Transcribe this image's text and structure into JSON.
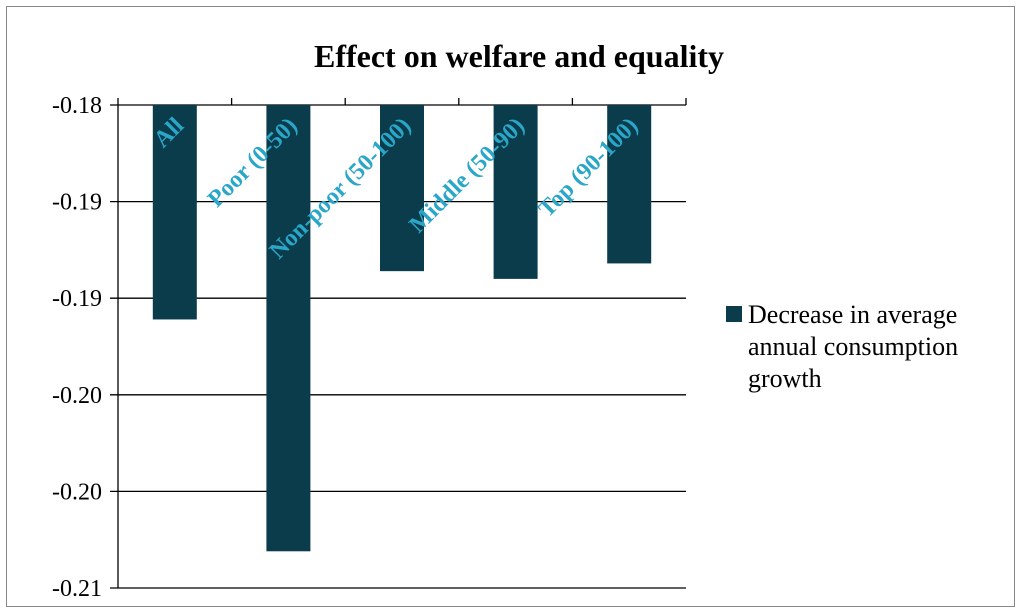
{
  "chart_data": {
    "type": "bar",
    "title": "Effect on welfare and equality",
    "categories": [
      "All",
      "Poor (0-50)",
      "Non-poor (50-100)",
      "Middle (50-90)",
      "Top (90-100)"
    ],
    "series": [
      {
        "name": "Decrease in average annual consumption growth",
        "values": [
          -0.1911,
          -0.2031,
          -0.1886,
          -0.189,
          -0.1882
        ],
        "color": "#0b3c4c"
      }
    ],
    "y_tick_labels": [
      "-0.18",
      "-0.19",
      "-0.19",
      "-0.20",
      "-0.20",
      "-0.21"
    ],
    "ylim": [
      -0.205,
      -0.18
    ],
    "y_tick_values": [
      -0.18,
      -0.185,
      -0.19,
      -0.195,
      -0.2,
      -0.205
    ],
    "grid": true,
    "legend_position": "right",
    "category_label_color": "#2aa6c9",
    "xlabel": "",
    "ylabel": ""
  }
}
